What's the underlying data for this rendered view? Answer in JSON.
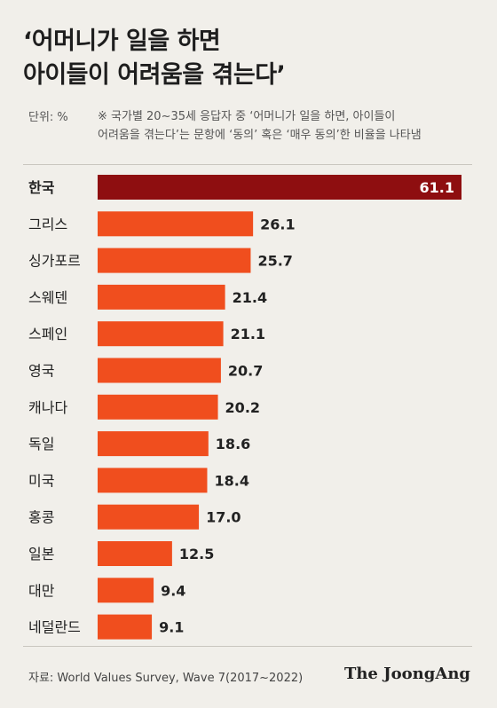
{
  "header": {
    "title_lines": [
      "‘어머니가 일을 하면",
      " 아이들이 어려움을 겪는다’"
    ],
    "unit": "단위: %",
    "note_lines": [
      "※ 국가별 20~35세 응답자 중 ‘어머니가 일을 하면, 아이들이",
      "어려움을 겪는다’는 문항에 ‘동의’ 혹은 ‘매우 동의’한 비율을 나타냄"
    ]
  },
  "footer": {
    "source": "자료: World Values Survey, Wave 7(2017~2022)",
    "logo": "The JoongAng"
  },
  "colors": {
    "highlight": "#8e0e10",
    "bar": "#f04e1e",
    "background": "#f1efea"
  },
  "chart_data": {
    "type": "bar",
    "orientation": "horizontal",
    "title": "‘어머니가 일을 하면 아이들이 어려움을 겪는다’",
    "unit": "단위: %",
    "categories": [
      "한국",
      "그리스",
      "싱가포르",
      "스웨덴",
      "스페인",
      "영국",
      "캐나다",
      "독일",
      "미국",
      "홍콩",
      "일본",
      "대만",
      "네덜란드"
    ],
    "values": [
      61.1,
      26.1,
      25.7,
      21.4,
      21.1,
      20.7,
      20.2,
      18.6,
      18.4,
      17.0,
      12.5,
      9.4,
      9.1
    ],
    "value_labels": [
      "61.1",
      "26.1",
      "25.7",
      "21.4",
      "21.1",
      "20.7",
      "20.2",
      "18.6",
      "18.4",
      "17.0",
      "12.5",
      "9.4",
      "9.1"
    ],
    "highlight_category": "한국",
    "xlim": [
      0,
      61.1
    ],
    "grid": false,
    "legend": "none"
  }
}
